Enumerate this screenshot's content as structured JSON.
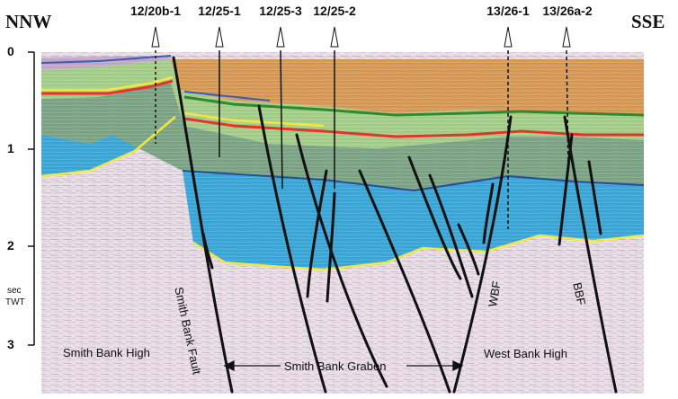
{
  "compass": {
    "left": "NNW",
    "right": "SSE"
  },
  "wells": [
    "12/20b-1",
    "12/25-1",
    "12/25-3",
    "12/25-2",
    "13/26-1",
    "13/26a-2"
  ],
  "axis": {
    "ticks": [
      "0",
      "1",
      "2",
      "3"
    ],
    "unit_top": "sec",
    "unit_bottom": "TWT"
  },
  "faults": {
    "smith_bank": "Smith Bank Fault",
    "wbf": "WBF",
    "bbf": "BBF"
  },
  "regions": {
    "smith_bank_high": "Smith Bank High",
    "graben": "Smith Bank Graben",
    "west_bank_high": "West Bank High"
  },
  "colors": {
    "basement": "#e9dfe8",
    "cover": "#d89a55",
    "upper_green": "#a6cf8a",
    "mid_green": "#7da585",
    "blue_basin": "#3aa7d8",
    "red_horizon": "#e8332b",
    "yellow_horizon": "#f2e640",
    "dark_green_horizon": "#2f8a2c",
    "faults": "#111111"
  }
}
